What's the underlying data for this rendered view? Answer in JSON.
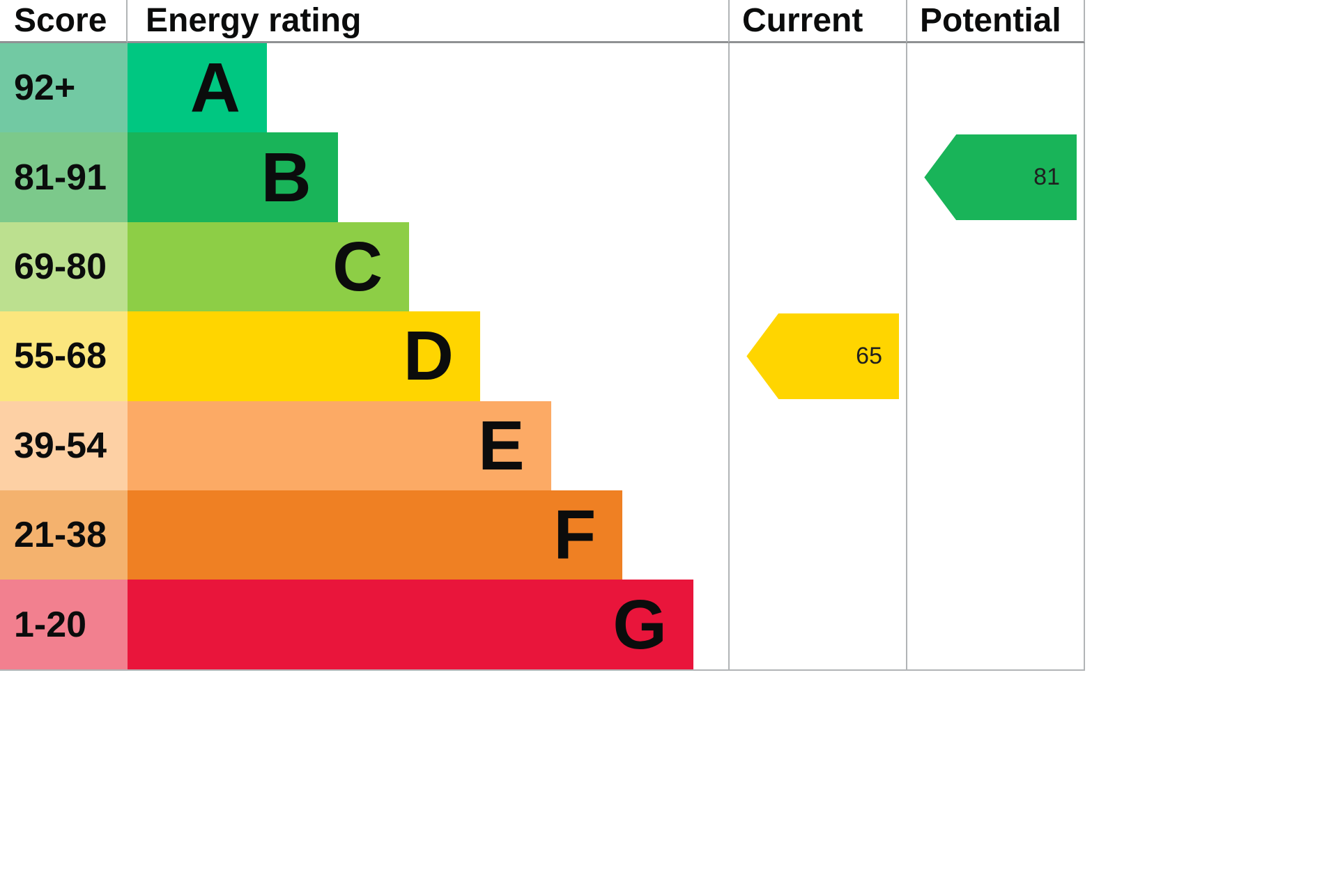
{
  "header": {
    "score": "Score",
    "energy_rating": "Energy rating",
    "current": "Current",
    "potential": "Potential"
  },
  "chart_data": {
    "type": "bar",
    "chart_kind": "epc-energy-efficiency-rating",
    "orientation": "horizontal",
    "grid": false,
    "legend_position": "none",
    "columns": [
      "Score",
      "Energy rating",
      "Current",
      "Potential"
    ],
    "bands": [
      {
        "score": "92+",
        "letter": "A",
        "color": "#00c781",
        "pale_color": "#72c9a3",
        "bar_width": "23.2%"
      },
      {
        "score": "81-91",
        "letter": "B",
        "color": "#19b459",
        "pale_color": "#7cc98b",
        "bar_width": "35.0%"
      },
      {
        "score": "69-80",
        "letter": "C",
        "color": "#8dce46",
        "pale_color": "#bce08f",
        "bar_width": "46.9%"
      },
      {
        "score": "55-68",
        "letter": "D",
        "color": "#ffd500",
        "pale_color": "#fbe67e",
        "bar_width": "58.7%"
      },
      {
        "score": "39-54",
        "letter": "E",
        "color": "#fcaa65",
        "pale_color": "#fdd0a4",
        "bar_width": "70.5%"
      },
      {
        "score": "21-38",
        "letter": "F",
        "color": "#ef8023",
        "pale_color": "#f4b26e",
        "bar_width": "82.4%"
      },
      {
        "score": "1-20",
        "letter": "G",
        "color": "#e9153b",
        "pale_color": "#f2808f",
        "bar_width": "94.2%"
      }
    ],
    "current": {
      "value": "65",
      "band": "D",
      "color": "#ffd500",
      "row_top": "42.857%"
    },
    "potential": {
      "value": "81",
      "band": "B",
      "color": "#19b459",
      "row_top": "14.286%"
    }
  }
}
